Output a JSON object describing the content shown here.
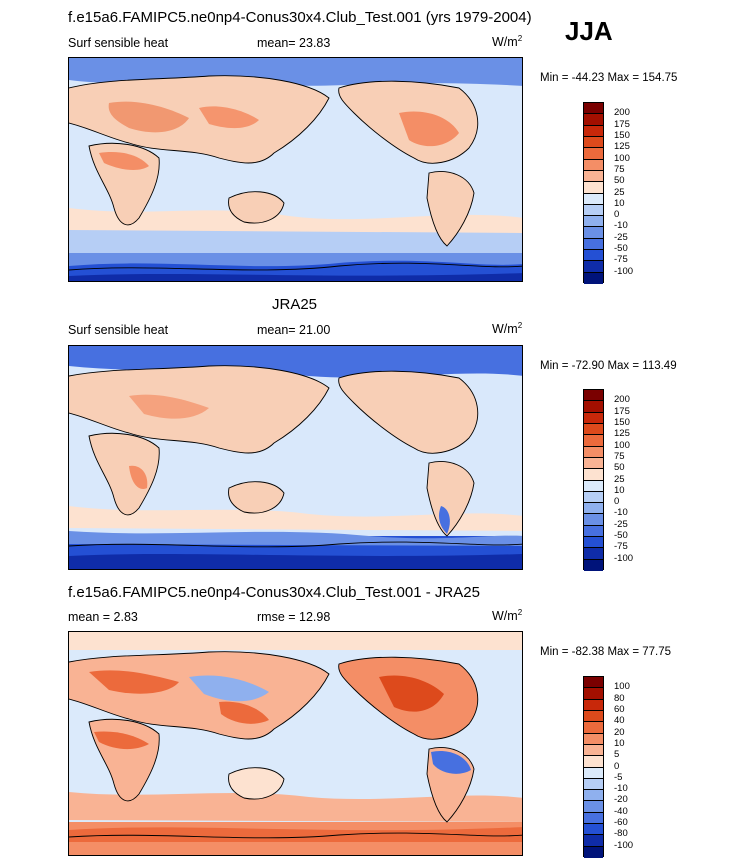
{
  "season": "JJA",
  "units_base": "W/m",
  "units_exp": "2",
  "panels": [
    {
      "title": "f.e15a6.FAMIPC5.ne0np4-Conus30x4.Club_Test.001 (yrs 1979-2004)",
      "left_label": "Surf sensible heat",
      "center_label": "mean=  23.83",
      "minmax": "Min = -44.23 Max = 154.75",
      "levels": [
        "200",
        "175",
        "150",
        "125",
        "100",
        "75",
        "50",
        "25",
        "10",
        "0",
        "-10",
        "-25",
        "-50",
        "-75",
        "-100"
      ]
    },
    {
      "title": "JRA25",
      "left_label": "Surf sensible heat",
      "center_label": "mean=  21.00",
      "minmax": "Min = -72.90 Max = 113.49",
      "levels": [
        "200",
        "175",
        "150",
        "125",
        "100",
        "75",
        "50",
        "25",
        "10",
        "0",
        "-10",
        "-25",
        "-50",
        "-75",
        "-100"
      ]
    },
    {
      "title": "f.e15a6.FAMIPC5.ne0np4-Conus30x4.Club_Test.001 - JRA25",
      "left_label": "mean =   2.83",
      "center_label": "rmse =  12.98",
      "minmax": "Min = -82.38 Max =  77.75",
      "levels": [
        "100",
        "80",
        "60",
        "40",
        "20",
        "10",
        "5",
        "0",
        "-5",
        "-10",
        "-20",
        "-40",
        "-60",
        "-80",
        "-100"
      ]
    }
  ],
  "colors": {
    "colorbar": [
      "#7a0000",
      "#a30f00",
      "#c8280a",
      "#dd4a1c",
      "#ec6a3c",
      "#f48e66",
      "#f9b394",
      "#fde2d0",
      "#dbeafb",
      "#b6cef5",
      "#8fb0ee",
      "#6a90e6",
      "#4770e0",
      "#2450d4",
      "#0f2ca8",
      "#00137a"
    ],
    "ocean_light": "#d9e8fb",
    "land_warm": "#f8cfb6",
    "land_hot": "#ef8a60",
    "cold_band": "#2c56d8",
    "cold_mid": "#6d92e8"
  }
}
